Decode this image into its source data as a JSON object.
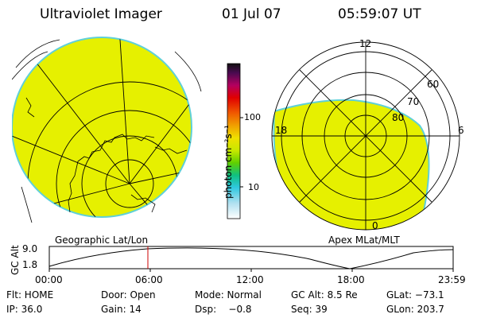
{
  "header": {
    "title": "Ultraviolet Imager",
    "date": "01 Jul 07",
    "time": "05:59:07 UT"
  },
  "colors": {
    "aurora_fill": "#e6f000",
    "aurora_edge": "#5fd0d8",
    "marker": "#cc0000"
  },
  "left_panel": {
    "label": "Geographic Lat/Lon"
  },
  "right_panel": {
    "label": "Apex MLat/MLT",
    "mlt_labels": {
      "top": "12",
      "bottom": "0",
      "left": "18",
      "right": "6"
    },
    "lat_labels": [
      "60",
      "70",
      "80"
    ]
  },
  "colorbar": {
    "unit_label": "photon cm⁻²s⁻¹",
    "tick_100": "100",
    "tick_10": "10"
  },
  "altitude_plot": {
    "ylabel": "GC Alt",
    "ytick_top": "9.0",
    "ytick_bottom": "1.8",
    "xticks": [
      "00:00",
      "06:00",
      "12:00",
      "18:00",
      "23:59"
    ]
  },
  "status": {
    "row1": [
      {
        "label": "Flt: HOME"
      },
      {
        "label": "Door: Open"
      },
      {
        "label": "Mode: Normal"
      },
      {
        "label": "GC Alt: 8.5 Re"
      },
      {
        "label": "GLat: −73.1"
      }
    ],
    "row2": [
      {
        "label": "IP: 36.0"
      },
      {
        "label": "Gain: 14"
      },
      {
        "label": "Dsp:    −0.8"
      },
      {
        "label": "Seq: 39"
      },
      {
        "label": "GLon: 203.7"
      }
    ]
  }
}
